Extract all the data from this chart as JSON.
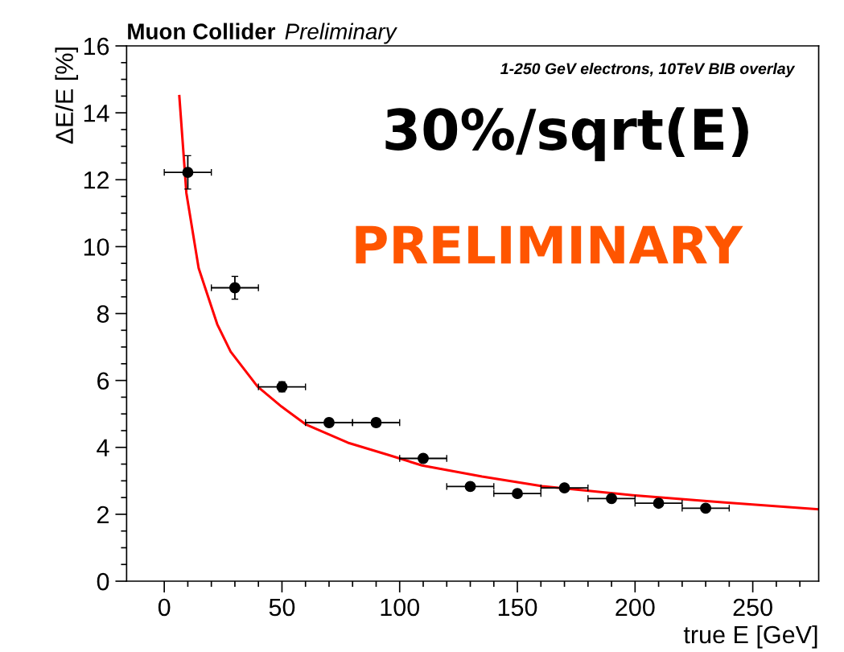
{
  "chart_data": {
    "type": "scatter",
    "title": "Muon Collider",
    "subtitle": "Preliminary",
    "xlabel": "true E [GeV]",
    "ylabel": "ΔE/E [%]",
    "annotations": [
      "1-250 GeV electrons, 10TeV BIB overlay",
      "30%/sqrt(E)",
      "PRELIMINARY"
    ],
    "xlim": [
      -16,
      278
    ],
    "ylim": [
      0,
      16
    ],
    "xticks": [
      0,
      {
        "value": 10,
        "label": null
      },
      {
        "value": 20,
        "label": null
      },
      {
        "value": 30,
        "label": null
      },
      {
        "value": 40,
        "label": null
      },
      50,
      {
        "value": 60,
        "label": null
      },
      {
        "value": 70,
        "label": null
      },
      {
        "value": 80,
        "label": null
      },
      {
        "value": 90,
        "label": null
      },
      100,
      {
        "value": 110,
        "label": null
      },
      {
        "value": 120,
        "label": null
      },
      {
        "value": 130,
        "label": null
      },
      {
        "value": 140,
        "label": null
      },
      150,
      {
        "value": 160,
        "label": null
      },
      {
        "value": 170,
        "label": null
      },
      {
        "value": 180,
        "label": null
      },
      {
        "value": 190,
        "label": null
      },
      200,
      {
        "value": 210,
        "label": null
      },
      {
        "value": 220,
        "label": null
      },
      {
        "value": 230,
        "label": null
      },
      {
        "value": 240,
        "label": null
      },
      250,
      {
        "value": 260,
        "label": null
      },
      {
        "value": 270,
        "label": null
      }
    ],
    "yticks": [
      0,
      {
        "value": 0.5,
        "label": null
      },
      {
        "value": 1,
        "label": null
      },
      {
        "value": 1.5,
        "label": null
      },
      2,
      {
        "value": 2.5,
        "label": null
      },
      {
        "value": 3,
        "label": null
      },
      {
        "value": 3.5,
        "label": null
      },
      4,
      {
        "value": 4.5,
        "label": null
      },
      {
        "value": 5,
        "label": null
      },
      {
        "value": 5.5,
        "label": null
      },
      6,
      {
        "value": 6.5,
        "label": null
      },
      {
        "value": 7,
        "label": null
      },
      {
        "value": 7.5,
        "label": null
      },
      8,
      {
        "value": 8.5,
        "label": null
      },
      {
        "value": 9,
        "label": null
      },
      {
        "value": 9.5,
        "label": null
      },
      10,
      {
        "value": 10.5,
        "label": null
      },
      {
        "value": 11,
        "label": null
      },
      {
        "value": 11.5,
        "label": null
      },
      12,
      {
        "value": 12.5,
        "label": null
      },
      {
        "value": 13,
        "label": null
      },
      {
        "value": 13.5,
        "label": null
      },
      14,
      {
        "value": 14.5,
        "label": null
      },
      {
        "value": 15,
        "label": null
      },
      {
        "value": 15.5,
        "label": null
      },
      16
    ],
    "grid": false,
    "legend": false,
    "series": [
      {
        "type": "line",
        "color": "#ff0000",
        "marker": "none",
        "line_style": "solid",
        "x": [
          6.4,
          9.4,
          14.6,
          22.5,
          28.2,
          39.6,
          49.8,
          60,
          78,
          95,
          109.5,
          135,
          160.6,
          199,
          237,
          277.8
        ],
        "values": [
          14.5,
          11.6,
          9.36,
          7.68,
          6.86,
          5.82,
          5.22,
          4.69,
          4.14,
          3.78,
          3.46,
          3.13,
          2.84,
          2.57,
          2.36,
          2.15
        ]
      },
      {
        "type": "scatter",
        "color": "#000000",
        "marker": "circle",
        "x": [
          10,
          30,
          50,
          70,
          90,
          110,
          130,
          150,
          170,
          190,
          210,
          230
        ],
        "values": [
          12.22,
          8.77,
          5.81,
          4.74,
          4.74,
          3.67,
          2.83,
          2.62,
          2.79,
          2.47,
          2.33,
          2.18
        ],
        "errors": [
          0.5,
          0.34,
          0.15,
          0.12,
          0.12,
          0.1,
          0.08,
          0.08,
          0.08,
          0.08,
          0.08,
          0.08
        ],
        "xerrors": [
          10,
          10,
          10,
          10,
          10,
          10,
          10,
          10,
          10,
          10,
          10,
          10
        ]
      }
    ]
  }
}
